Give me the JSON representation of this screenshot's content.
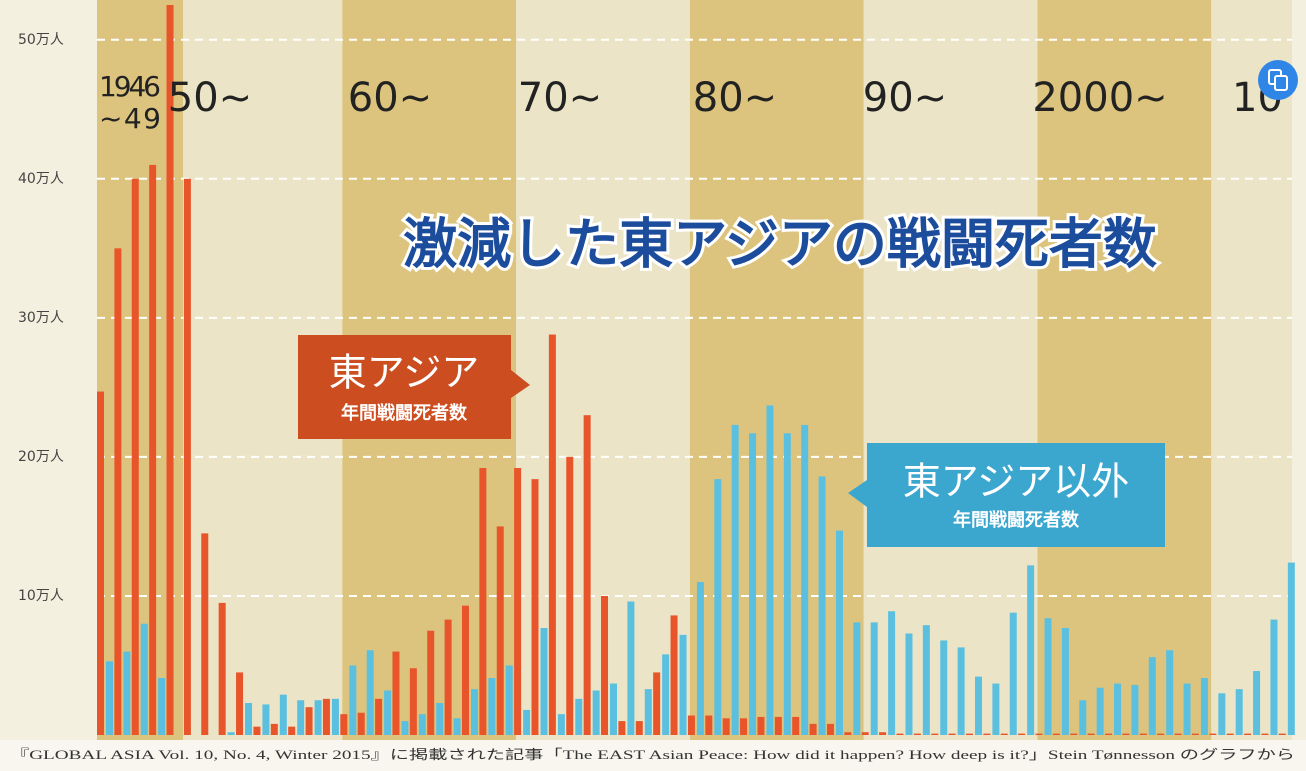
{
  "chart_data": {
    "type": "bar",
    "title": "激減した東アジアの戦闘死者数",
    "source": "『GLOBAL ASIA Vol. 10, No. 4, Winter 2015』に掲載された記事「The EAST Asian Peace: How did it happen? How deep is it?」Stein Tønnesson のグラフから",
    "decade_labels": [
      [
        "1946",
        "~49"
      ],
      [
        "50~"
      ],
      [
        "60~"
      ],
      [
        "70~"
      ],
      [
        "80~"
      ],
      [
        "90~"
      ],
      [
        "2000~"
      ],
      [
        "10"
      ]
    ],
    "categories": [
      null,
      null,
      null,
      null,
      null,
      null,
      null,
      null,
      null,
      null,
      null,
      null,
      null,
      null,
      null,
      null,
      null,
      null,
      null,
      null,
      null,
      null,
      null,
      null,
      null,
      null,
      null,
      null,
      null,
      null,
      null,
      null,
      null,
      null,
      null,
      null,
      null,
      null,
      null,
      null,
      null,
      null,
      null,
      null,
      null,
      null,
      null,
      null,
      null,
      null,
      null,
      null,
      null,
      null,
      null,
      null,
      null,
      null,
      null,
      null,
      null,
      null,
      null,
      null,
      null,
      null,
      null,
      null,
      null
    ],
    "series": [
      {
        "name": "東アジア",
        "sublabel": "年間戦闘死者数",
        "color": "#e8552a",
        "values": [
          24.7,
          35,
          40,
          41,
          52.5,
          40,
          14.5,
          9.5,
          4.5,
          0.6,
          0.8,
          0.6,
          2.0,
          2.6,
          1.5,
          1.6,
          2.6,
          6.0,
          4.8,
          7.5,
          8.3,
          9.3,
          19.2,
          15,
          19.2,
          18.4,
          28.8,
          20,
          23,
          10,
          1.0,
          1.0,
          4.5,
          8.6,
          1.4,
          1.4,
          1.2,
          1.2,
          1.3,
          1.3,
          1.3,
          0.8,
          0.8,
          0.2,
          0.2,
          0.2,
          0.1,
          0.1,
          0.1,
          0.1,
          0.1,
          0.1,
          0.1,
          0.1,
          0.1,
          0.1,
          0.1,
          0.1,
          0.1,
          0.1,
          0.1,
          0.1,
          0.1,
          0.1,
          0.1,
          0.1,
          0.1,
          0.1,
          0.1
        ]
      },
      {
        "name": "東アジア以外",
        "sublabel": "年間戦闘死者数",
        "color": "#5bc0e0",
        "values": [
          5.3,
          6,
          8,
          4.1,
          0,
          0,
          0,
          0.2,
          2.3,
          2.2,
          2.9,
          2.5,
          2.5,
          2.6,
          5.0,
          6.1,
          3.2,
          1.0,
          1.5,
          2.3,
          1.2,
          3.3,
          4.1,
          5,
          1.8,
          7.7,
          1.5,
          2.6,
          3.2,
          3.7,
          9.6,
          3.3,
          5.8,
          7.2,
          11,
          18.4,
          22.3,
          21.7,
          23.7,
          21.7,
          22.3,
          18.6,
          14.7,
          8.1,
          8.1,
          8.9,
          7.3,
          7.9,
          6.8,
          6.3,
          4.2,
          3.7,
          8.8,
          12.2,
          8.4,
          7.7,
          2.5,
          3.4,
          3.7,
          3.6,
          5.6,
          6.1,
          3.7,
          4.1,
          3.0,
          3.3,
          4.6,
          8.3,
          12.4
        ]
      }
    ],
    "ylim": [
      0,
      52.5
    ],
    "yticks": [
      {
        "value": 10,
        "label": "10万人"
      },
      {
        "value": 20,
        "label": "20万人"
      },
      {
        "value": 30,
        "label": "30万人"
      },
      {
        "value": 40,
        "label": "40万人"
      },
      {
        "value": 50,
        "label": "50万人"
      }
    ],
    "grid": true
  }
}
